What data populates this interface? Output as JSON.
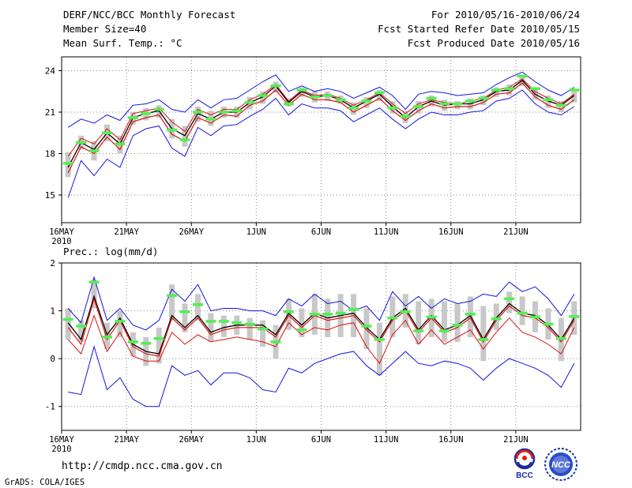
{
  "header": {
    "title": "DERF/NCC/BCC Monthly Forecast",
    "member_size": "Member Size=40",
    "variable": "Mean Surf. Temp.: °C",
    "period": "For 2010/05/16-2010/06/24",
    "start_date": "Fcst Started Refer Date 2010/05/15",
    "produced_date": "Fcst Produced Date 2010/05/16"
  },
  "colors": {
    "envelope": "#1414e0",
    "mean": "#e01010",
    "control": "#000000",
    "spread": "#c8c8c8",
    "highlight": "#55ee55",
    "axis": "#000000",
    "grid": "#888888"
  },
  "footer": {
    "url": "http://cmdp.ncc.cma.gov.cn",
    "credit": "GrADS: COLA/IGES",
    "logo_left": "BCC",
    "logo_right": "NCC"
  },
  "chart_data": [
    {
      "type": "line",
      "title": "Mean Surf. Temp.: °C",
      "unit": "°C",
      "ylim": [
        13,
        25
      ],
      "yticks": [
        15,
        18,
        21,
        24
      ],
      "xlim": [
        1,
        41
      ],
      "x_tick_positions": [
        1,
        6,
        11,
        16,
        21,
        26,
        31,
        36
      ],
      "x_tick_labels": [
        "16MAY",
        "21MAY",
        "26MAY",
        "1JUN",
        "6JUN",
        "11JUN",
        "16JUN",
        "21JUN"
      ],
      "x_year_label": "2010",
      "grid": true,
      "series": [
        {
          "name": "max",
          "values": [
            19.9,
            20.5,
            20.2,
            20.8,
            20.4,
            21.5,
            21.6,
            21.9,
            21.2,
            21.0,
            21.9,
            21.3,
            21.9,
            22.0,
            22.6,
            23.2,
            23.7,
            22.5,
            22.9,
            22.5,
            22.7,
            22.5,
            22.0,
            22.4,
            22.8,
            22.2,
            21.2,
            22.3,
            22.5,
            22.4,
            22.2,
            22.3,
            22.4,
            23.0,
            23.5,
            23.9,
            23.2,
            22.6,
            22.2,
            22.8
          ]
        },
        {
          "name": "upper",
          "values": [
            17.8,
            19.1,
            18.7,
            19.8,
            19.0,
            20.9,
            21.1,
            21.3,
            20.3,
            19.6,
            21.2,
            20.8,
            21.2,
            21.2,
            21.9,
            22.3,
            23.0,
            21.8,
            22.6,
            22.2,
            22.3,
            22.0,
            21.5,
            21.9,
            22.4,
            21.6,
            20.9,
            21.6,
            21.9,
            21.7,
            21.6,
            21.8,
            22.0,
            22.6,
            22.8,
            23.4,
            22.5,
            22.0,
            21.6,
            22.3
          ]
        },
        {
          "name": "control",
          "values": [
            17.0,
            18.8,
            18.3,
            19.5,
            18.7,
            20.6,
            20.9,
            21.1,
            19.8,
            19.3,
            20.9,
            20.5,
            21.0,
            21.0,
            21.7,
            22.1,
            22.9,
            21.7,
            22.5,
            22.1,
            22.2,
            21.9,
            21.3,
            21.8,
            22.3,
            21.4,
            20.6,
            21.4,
            21.8,
            21.5,
            21.6,
            21.6,
            21.9,
            22.5,
            22.6,
            23.3,
            22.3,
            21.8,
            21.5,
            22.2
          ]
        },
        {
          "name": "mean",
          "values": [
            16.6,
            18.5,
            18.0,
            19.2,
            18.3,
            20.3,
            20.6,
            20.8,
            19.4,
            18.9,
            20.6,
            20.2,
            20.8,
            20.7,
            21.5,
            21.8,
            22.6,
            21.5,
            22.3,
            21.9,
            21.9,
            21.7,
            21.0,
            21.5,
            22.0,
            21.1,
            20.4,
            21.1,
            21.6,
            21.3,
            21.4,
            21.4,
            21.7,
            22.3,
            22.4,
            23.1,
            22.1,
            21.5,
            21.2,
            21.9
          ]
        },
        {
          "name": "min",
          "values": [
            14.8,
            17.5,
            16.4,
            17.6,
            17.0,
            19.3,
            19.8,
            20.0,
            18.4,
            17.8,
            19.9,
            19.3,
            20.0,
            20.1,
            20.7,
            21.2,
            22.0,
            20.8,
            21.6,
            21.3,
            21.3,
            21.1,
            20.3,
            20.8,
            21.3,
            20.5,
            19.8,
            20.5,
            21.0,
            20.8,
            20.8,
            21.0,
            21.1,
            21.8,
            22.0,
            22.6,
            21.6,
            21.0,
            20.8,
            21.4
          ]
        }
      ],
      "spread_bars": {
        "low": [
          16.3,
          18.3,
          17.5,
          18.9,
          18.0,
          20.1,
          20.4,
          20.6,
          19.1,
          18.5,
          20.3,
          20.0,
          20.6,
          20.6,
          21.2,
          21.6,
          22.4,
          21.4,
          22.1,
          21.7,
          21.8,
          21.6,
          20.8,
          21.3,
          21.8,
          20.9,
          20.2,
          20.9,
          21.4,
          21.1,
          21.2,
          21.2,
          21.5,
          22.1,
          22.2,
          22.9,
          21.9,
          21.3,
          21.0,
          21.7
        ],
        "high": [
          18.1,
          19.3,
          18.9,
          20.1,
          19.3,
          21.0,
          21.3,
          21.5,
          20.5,
          20.0,
          21.4,
          21.1,
          21.4,
          21.4,
          22.1,
          22.5,
          23.2,
          22.0,
          22.8,
          22.5,
          22.5,
          22.2,
          21.7,
          22.1,
          22.6,
          21.8,
          21.1,
          21.8,
          22.2,
          21.9,
          21.8,
          22.0,
          22.2,
          22.8,
          23.0,
          23.7,
          22.7,
          22.2,
          21.8,
          22.5
        ]
      },
      "highlight_markers": [
        17.3,
        18.8,
        18.2,
        19.5,
        18.7,
        20.6,
        20.9,
        21.2,
        19.7,
        19.0,
        21.0,
        20.5,
        21.0,
        21.1,
        21.7,
        22.2,
        22.9,
        21.6,
        22.6,
        22.1,
        22.2,
        21.9,
        21.3,
        21.8,
        22.4,
        21.3,
        20.7,
        21.4,
        22.0,
        21.6,
        21.6,
        21.8,
        22.0,
        22.6,
        22.7,
        23.6,
        22.7,
        21.9,
        21.5,
        22.6
      ]
    },
    {
      "type": "line",
      "title": "Prec.: log(mm/d)",
      "unit": "log(mm/d)",
      "ylim": [
        -1.5,
        2
      ],
      "yticks": [
        -1,
        0,
        1,
        2
      ],
      "xlim": [
        1,
        41
      ],
      "x_tick_positions": [
        1,
        6,
        11,
        16,
        21,
        26,
        31,
        36
      ],
      "x_tick_labels": [
        "16MAY",
        "21MAY",
        "26MAY",
        "1JUN",
        "6JUN",
        "11JUN",
        "16JUN",
        "21JUN"
      ],
      "x_year_label": "2010",
      "grid": true,
      "series": [
        {
          "name": "max",
          "values": [
            1.05,
            0.75,
            1.7,
            0.8,
            1.05,
            0.7,
            0.6,
            0.8,
            1.45,
            1.2,
            1.55,
            1.0,
            1.05,
            1.05,
            1.0,
            1.0,
            0.9,
            1.25,
            1.1,
            1.35,
            1.15,
            1.2,
            1.0,
            1.1,
            0.8,
            1.4,
            1.1,
            1.3,
            1.05,
            1.25,
            1.15,
            1.2,
            1.35,
            1.3,
            1.6,
            1.4,
            1.5,
            1.25,
            0.9,
            1.35
          ]
        },
        {
          "name": "control",
          "values": [
            0.75,
            0.4,
            1.3,
            0.5,
            0.85,
            0.3,
            0.15,
            0.1,
            0.9,
            0.65,
            0.9,
            0.55,
            0.65,
            0.7,
            0.7,
            0.7,
            0.5,
            0.95,
            0.7,
            0.95,
            0.85,
            0.9,
            0.95,
            0.65,
            0.4,
            0.85,
            1.05,
            0.6,
            0.9,
            0.6,
            0.7,
            0.9,
            0.4,
            0.85,
            1.15,
            0.95,
            0.9,
            0.7,
            0.4,
            0.85
          ]
        },
        {
          "name": "mean",
          "values": [
            0.65,
            0.3,
            1.25,
            0.4,
            0.8,
            0.25,
            0.1,
            0.05,
            0.85,
            0.6,
            0.85,
            0.5,
            0.6,
            0.65,
            0.65,
            0.65,
            0.45,
            0.9,
            0.65,
            0.9,
            0.8,
            0.85,
            0.9,
            0.6,
            0.35,
            0.8,
            1.0,
            0.55,
            0.85,
            0.55,
            0.65,
            0.85,
            0.35,
            0.8,
            1.1,
            0.9,
            0.85,
            0.65,
            0.35,
            0.8
          ]
        },
        {
          "name": "lower",
          "values": [
            0.4,
            0.1,
            0.9,
            0.15,
            0.55,
            0.05,
            -0.05,
            -0.05,
            0.55,
            0.3,
            0.5,
            0.35,
            0.4,
            0.45,
            0.4,
            0.35,
            0.25,
            0.75,
            0.5,
            0.65,
            0.6,
            0.7,
            0.75,
            0.25,
            -0.1,
            0.5,
            0.8,
            0.3,
            0.6,
            0.3,
            0.45,
            0.6,
            0.2,
            0.55,
            0.85,
            0.55,
            0.45,
            0.3,
            0.1,
            0.65
          ]
        },
        {
          "name": "min",
          "values": [
            -0.7,
            -0.75,
            0.25,
            -0.65,
            -0.4,
            -0.85,
            -1.0,
            -1.0,
            -0.15,
            -0.35,
            -0.25,
            -0.55,
            -0.3,
            -0.3,
            -0.4,
            -0.65,
            -0.7,
            -0.2,
            -0.3,
            -0.1,
            0.0,
            0.1,
            0.15,
            -0.15,
            -0.35,
            -0.1,
            0.15,
            -0.1,
            -0.15,
            -0.05,
            -0.1,
            -0.2,
            -0.45,
            -0.2,
            0.0,
            -0.1,
            -0.2,
            -0.35,
            -0.6,
            -0.1
          ]
        }
      ],
      "spread_bars": {
        "low": [
          0.4,
          0.35,
          1.05,
          0.2,
          0.45,
          0.05,
          -0.15,
          -0.1,
          0.8,
          0.55,
          0.8,
          0.35,
          0.45,
          0.5,
          0.4,
          0.25,
          0.0,
          0.6,
          0.45,
          0.5,
          0.45,
          0.45,
          0.45,
          0.2,
          -0.35,
          0.45,
          0.65,
          0.3,
          0.45,
          0.35,
          0.35,
          0.45,
          -0.05,
          0.6,
          0.95,
          0.7,
          0.55,
          0.4,
          -0.05,
          0.5
        ],
        "high": [
          1.05,
          0.8,
          1.65,
          0.75,
          1.0,
          0.55,
          0.45,
          0.65,
          1.55,
          1.15,
          1.35,
          0.95,
          0.9,
          0.9,
          0.85,
          0.8,
          0.7,
          1.25,
          1.05,
          1.35,
          1.25,
          1.35,
          1.35,
          1.05,
          0.75,
          1.3,
          1.35,
          1.2,
          1.25,
          1.2,
          1.15,
          1.3,
          1.1,
          1.15,
          1.4,
          1.3,
          1.2,
          1.05,
          0.85,
          1.2
        ]
      },
      "highlight_markers": [
        0.82,
        0.68,
        1.6,
        0.45,
        0.78,
        0.35,
        0.32,
        0.42,
        1.32,
        0.98,
        1.13,
        0.78,
        0.78,
        0.75,
        0.72,
        0.62,
        0.35,
        0.98,
        0.6,
        0.93,
        0.93,
        0.95,
        1.03,
        0.68,
        0.4,
        0.85,
        0.98,
        0.58,
        0.87,
        0.58,
        0.7,
        0.93,
        0.4,
        0.83,
        1.25,
        0.95,
        0.87,
        0.72,
        0.42,
        0.88
      ]
    }
  ]
}
